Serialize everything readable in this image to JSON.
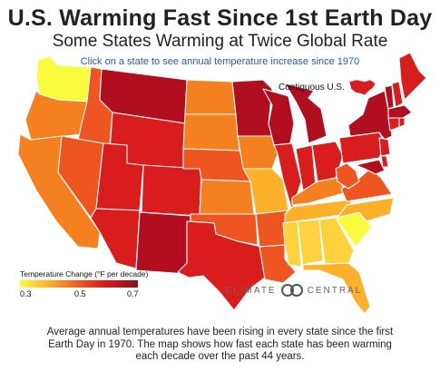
{
  "title": "U.S. Warming Fast Since 1st Earth Day",
  "subtitle": "Some States Warming at Twice Global Rate",
  "instruction": "Click on a state to see annual temperature increase since 1970",
  "inset_label": "Contiguous U.S.",
  "legend": {
    "title": "Temperature Change (°F per decade)",
    "ticks": [
      "0.3",
      "0.5",
      "0.7"
    ]
  },
  "logo": {
    "left": "CLIMATE",
    "right": "CENTRAL"
  },
  "caption": "Average annual temperatures have been rising in every state since the first Earth Day in 1970. The map shows how fast each state has been warming each decade over the past 44 years.",
  "colors": {
    "yellow": "#fbfb3d",
    "light_orange": "#fdd23e",
    "orange": "#fdb02a",
    "dark_orange": "#f5801f",
    "red_orange": "#ef5520",
    "red": "#d91d1c",
    "dark_red": "#b10f20"
  },
  "states": [
    {
      "name": "Washington",
      "color": "yellow"
    },
    {
      "name": "Oregon",
      "color": "dark_orange"
    },
    {
      "name": "California",
      "color": "dark_orange"
    },
    {
      "name": "Idaho",
      "color": "red_orange"
    },
    {
      "name": "Nevada",
      "color": "red_orange"
    },
    {
      "name": "Montana",
      "color": "dark_red"
    },
    {
      "name": "Wyoming",
      "color": "red"
    },
    {
      "name": "Utah",
      "color": "red"
    },
    {
      "name": "Arizona",
      "color": "red"
    },
    {
      "name": "Colorado",
      "color": "red"
    },
    {
      "name": "New Mexico",
      "color": "dark_red"
    },
    {
      "name": "North Dakota",
      "color": "dark_orange"
    },
    {
      "name": "South Dakota",
      "color": "dark_orange"
    },
    {
      "name": "Nebraska",
      "color": "red_orange"
    },
    {
      "name": "Kansas",
      "color": "dark_orange"
    },
    {
      "name": "Oklahoma",
      "color": "red_orange"
    },
    {
      "name": "Texas",
      "color": "red"
    },
    {
      "name": "Minnesota",
      "color": "dark_red"
    },
    {
      "name": "Iowa",
      "color": "dark_orange"
    },
    {
      "name": "Missouri",
      "color": "orange"
    },
    {
      "name": "Arkansas",
      "color": "red_orange"
    },
    {
      "name": "Louisiana",
      "color": "red_orange"
    },
    {
      "name": "Wisconsin",
      "color": "dark_red"
    },
    {
      "name": "Illinois",
      "color": "red"
    },
    {
      "name": "Michigan",
      "color": "dark_red"
    },
    {
      "name": "Indiana",
      "color": "red"
    },
    {
      "name": "Ohio",
      "color": "red"
    },
    {
      "name": "Kentucky",
      "color": "dark_orange"
    },
    {
      "name": "Tennessee",
      "color": "orange"
    },
    {
      "name": "Mississippi",
      "color": "light_orange"
    },
    {
      "name": "Alabama",
      "color": "light_orange"
    },
    {
      "name": "Georgia",
      "color": "light_orange"
    },
    {
      "name": "Florida",
      "color": "orange"
    },
    {
      "name": "South Carolina",
      "color": "yellow"
    },
    {
      "name": "North Carolina",
      "color": "orange"
    },
    {
      "name": "Virginia",
      "color": "red_orange"
    },
    {
      "name": "West Virginia",
      "color": "red_orange"
    },
    {
      "name": "Pennsylvania",
      "color": "red"
    },
    {
      "name": "New York",
      "color": "dark_red"
    },
    {
      "name": "Maryland",
      "color": "dark_red"
    },
    {
      "name": "Delaware",
      "color": "red"
    },
    {
      "name": "New Jersey",
      "color": "red"
    },
    {
      "name": "Vermont",
      "color": "dark_red"
    },
    {
      "name": "New Hampshire",
      "color": "red"
    },
    {
      "name": "Maine",
      "color": "red"
    },
    {
      "name": "Massachusetts",
      "color": "dark_red"
    },
    {
      "name": "Connecticut",
      "color": "red"
    },
    {
      "name": "Rhode Island",
      "color": "red"
    }
  ]
}
